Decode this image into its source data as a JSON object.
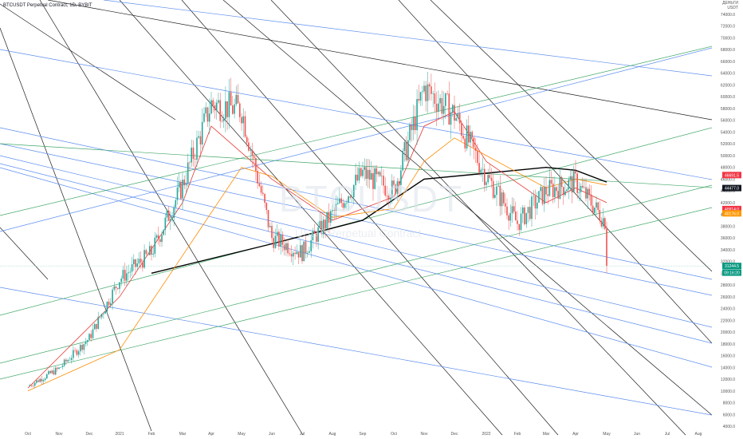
{
  "header": {
    "symbol_line": "BTCUSDT Perpetual Contract, 1D, BYBIT"
  },
  "unit_label": [
    "ДЕНЬГИ",
    "USDT"
  ],
  "watermark": {
    "symbol": "BTCUSDT",
    "name": "USDT Perpetual Contract"
  },
  "chart_data": {
    "type": "candlestick",
    "title": "BTCUSDT Perpetual Contract, 1D, BYBIT",
    "x_labels": [
      "Oct",
      "Nov",
      "Dec",
      "2021",
      "Feb",
      "Mar",
      "Apr",
      "May",
      "Jun",
      "Jul",
      "Aug",
      "Sep",
      "Oct",
      "Nov",
      "Dec",
      "2022",
      "Feb",
      "Mar",
      "Apr",
      "May",
      "Jun",
      "Jul",
      "Aug"
    ],
    "y_ticks": [
      74000,
      72000,
      70000,
      68000,
      66000,
      64000,
      62000,
      60000,
      58000,
      56000,
      54000,
      52000,
      50000,
      48000,
      46000,
      44000,
      42000,
      40000,
      38000,
      36000,
      34000,
      32000,
      30000,
      28000,
      26000,
      24000,
      22000,
      20000,
      18000,
      16000,
      14000,
      12000,
      10000,
      8000,
      6000,
      4000
    ],
    "ylim": [
      4000,
      76000
    ],
    "y_scale": "linear",
    "grid": false,
    "price_path": [
      [
        "Oct",
        10800
      ],
      [
        "Nov",
        13800
      ],
      [
        "Dec",
        19000
      ],
      [
        "2021",
        29000
      ],
      [
        "Feb",
        33500
      ],
      [
        "Mar",
        45000
      ],
      [
        "Apr",
        58800
      ],
      [
        "May",
        57800
      ],
      [
        "Jun",
        36000
      ],
      [
        "Jul",
        33500
      ],
      [
        "Aug",
        40000
      ],
      [
        "Sep",
        47000
      ],
      [
        "Oct",
        44000
      ],
      [
        "Nov",
        61500
      ],
      [
        "Dec",
        57000
      ],
      [
        "2022",
        46500
      ],
      [
        "Feb",
        38500
      ],
      [
        "Mar",
        44000
      ],
      [
        "Apr",
        45500
      ],
      [
        "May",
        38500
      ],
      [
        "May",
        31244.5
      ]
    ],
    "moving_averages": [
      {
        "name": "",
        "color": "#000000",
        "points": [
          [
            "Feb",
            30000
          ],
          [
            "Jun",
            35000
          ],
          [
            "Sep",
            39000
          ],
          [
            "Nov",
            46000
          ],
          [
            "2022",
            47000
          ],
          [
            "Mar",
            48000
          ],
          [
            "Apr",
            47500
          ],
          [
            "May",
            45500
          ]
        ]
      },
      {
        "name": "",
        "color": "#e53935",
        "points": [
          [
            "Oct",
            10500
          ],
          [
            "2021",
            26000
          ],
          [
            "Mar",
            42000
          ],
          [
            "Apr",
            55000
          ],
          [
            "Jun",
            46000
          ],
          [
            "Aug",
            39000
          ],
          [
            "Oct",
            43000
          ],
          [
            "Nov",
            55000
          ],
          [
            "Dec",
            57500
          ],
          [
            "2022",
            49000
          ],
          [
            "Mar",
            42000
          ],
          [
            "Apr",
            44500
          ],
          [
            "May",
            42000
          ]
        ]
      },
      {
        "name": "",
        "color": "#fb8c00",
        "points": [
          [
            "Oct",
            10000
          ],
          [
            "2021",
            17000
          ],
          [
            "Mar",
            33000
          ],
          [
            "May",
            48000
          ],
          [
            "Jun",
            46500
          ],
          [
            "Aug",
            39500
          ],
          [
            "Oct",
            41000
          ],
          [
            "Nov",
            49000
          ],
          [
            "Dec",
            53000
          ],
          [
            "2022",
            50000
          ],
          [
            "Mar",
            44500
          ],
          [
            "Apr",
            46000
          ],
          [
            "May",
            45000
          ]
        ]
      }
    ],
    "price_labels": [
      {
        "value": "46691.5",
        "color": "#f23645"
      },
      {
        "value": "44477.0",
        "color": "#131722"
      },
      {
        "value": "40914.0",
        "color": "#f23645"
      },
      {
        "value": "40176.0",
        "color": "#ff9800"
      },
      {
        "value": "31244.5",
        "color": "#089981"
      },
      {
        "value": "09:16:20",
        "color": "#089981"
      }
    ],
    "drawn_lines": {
      "black_diagonals": 11,
      "blue_channels": 9,
      "green_channels": 5
    },
    "candle_up_color": "#26a69a",
    "candle_down_color": "#ef5350"
  }
}
